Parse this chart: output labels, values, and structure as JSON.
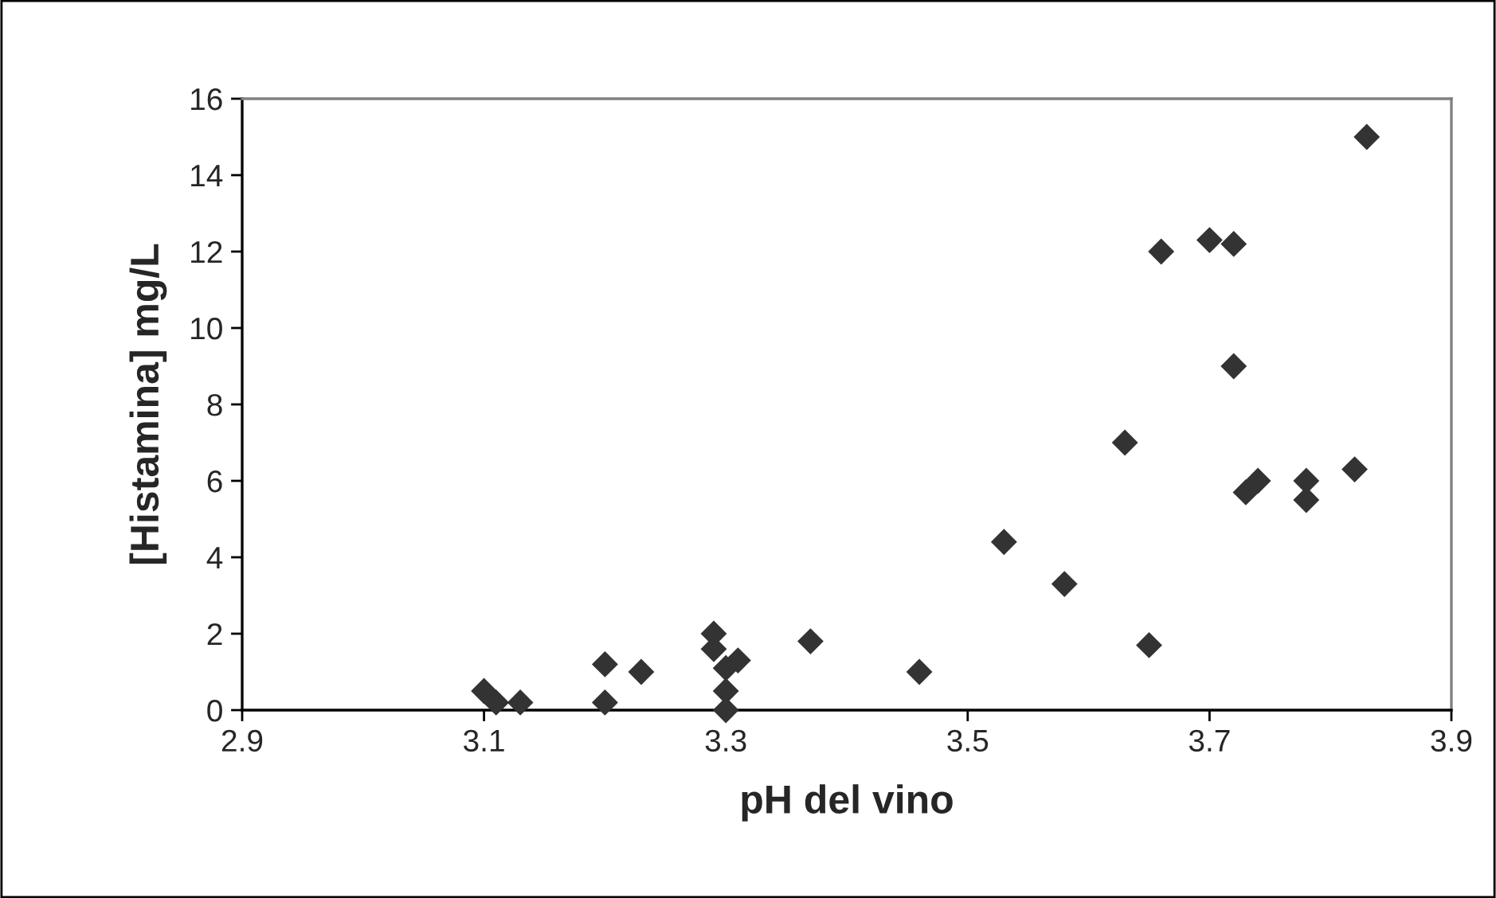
{
  "chart_data": {
    "type": "scatter",
    "xlabel": "pH del vino",
    "ylabel": "[Histamina] mg/L",
    "xlim": [
      2.9,
      3.9
    ],
    "xticks": [
      2.9,
      3.1,
      3.3,
      3.5,
      3.7,
      3.9
    ],
    "ylim": [
      0,
      16
    ],
    "yticks": [
      0,
      2,
      4,
      6,
      8,
      10,
      12,
      14,
      16
    ],
    "grid": false,
    "marker": "diamond",
    "series": [
      {
        "color": "#333333",
        "x": [
          3.1,
          3.11,
          3.13,
          3.2,
          3.2,
          3.23,
          3.29,
          3.29,
          3.3,
          3.3,
          3.3,
          3.31,
          3.37,
          3.46,
          3.53,
          3.58,
          3.65,
          3.63,
          3.66,
          3.7,
          3.72,
          3.72,
          3.73,
          3.74,
          3.78,
          3.78,
          3.82,
          3.83
        ],
        "values": [
          0.5,
          0.2,
          0.2,
          1.2,
          0.2,
          1.0,
          2.0,
          1.6,
          1.1,
          0.5,
          0.0,
          1.3,
          1.8,
          1.0,
          4.4,
          3.3,
          1.7,
          7.0,
          12.0,
          12.3,
          12.2,
          9.0,
          5.7,
          6.0,
          6.0,
          5.5,
          6.3,
          15.0
        ]
      }
    ]
  }
}
